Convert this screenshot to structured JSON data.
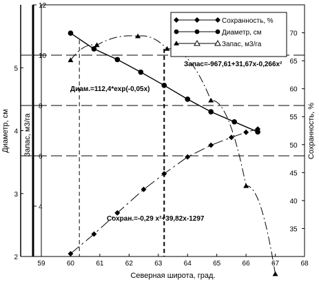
{
  "chart_data": {
    "type": "line",
    "xlabel": "Северная широта, град.",
    "xlim": [
      59,
      68
    ],
    "x_ticks": [
      59,
      60,
      61,
      62,
      63,
      64,
      65,
      66,
      67,
      68
    ],
    "y_left_outer": {
      "label": "Диаметр, см",
      "ylim": [
        2,
        6
      ],
      "ticks": [
        2,
        3,
        4,
        5
      ]
    },
    "y_left_inner": {
      "label": "Запас, м3/га",
      "ylim": [
        2,
        12
      ],
      "ticks": [
        4,
        6,
        8,
        10,
        12
      ]
    },
    "y_right": {
      "label": "Сохранность, %",
      "ylim": [
        30,
        75
      ],
      "ticks": [
        35,
        40,
        45,
        50,
        55,
        60,
        65,
        70
      ]
    },
    "legend": {
      "placement": "top-right",
      "entries": [
        "Сохранность, %",
        "Диаметр, см",
        "Запас, м3/га"
      ]
    },
    "series": [
      {
        "name": "Сохранность, %",
        "marker": "diamond",
        "axis": "right",
        "x": [
          60.0,
          60.8,
          61.6,
          62.5,
          63.2,
          64.0,
          64.8,
          65.5,
          66.0,
          66.4
        ],
        "y": [
          30.5,
          34.0,
          37.8,
          42.0,
          44.8,
          47.8,
          49.9,
          51.3,
          52.2,
          52.8
        ]
      },
      {
        "name": "Диаметр, см",
        "marker": "circle",
        "axis": "left_outer",
        "x": [
          60.0,
          60.8,
          61.6,
          62.4,
          63.2,
          64.0,
          64.8,
          65.6,
          66.4
        ],
        "y": [
          5.55,
          5.3,
          5.13,
          4.93,
          4.72,
          4.5,
          4.3,
          4.14,
          3.98
        ]
      },
      {
        "name": "Запас, м3/га",
        "marker": "triangle",
        "axis": "left_inner",
        "x": [
          60.0,
          60.9,
          62.3,
          63.3,
          64.8,
          66.0,
          67.0
        ],
        "y": [
          9.8,
          10.4,
          10.75,
          10.25,
          8.2,
          4.8,
          1.3
        ]
      }
    ],
    "annotations": [
      "Запас=-967,61+31,67x-0,266x²",
      "Диам.=112,4*exp(-0,05x)",
      "Сохран.=-0,29 x²+39,82x-1297"
    ],
    "vertical_markers": [
      60.3,
      63.2
    ],
    "grid": "horizontal dashed reference lines"
  }
}
